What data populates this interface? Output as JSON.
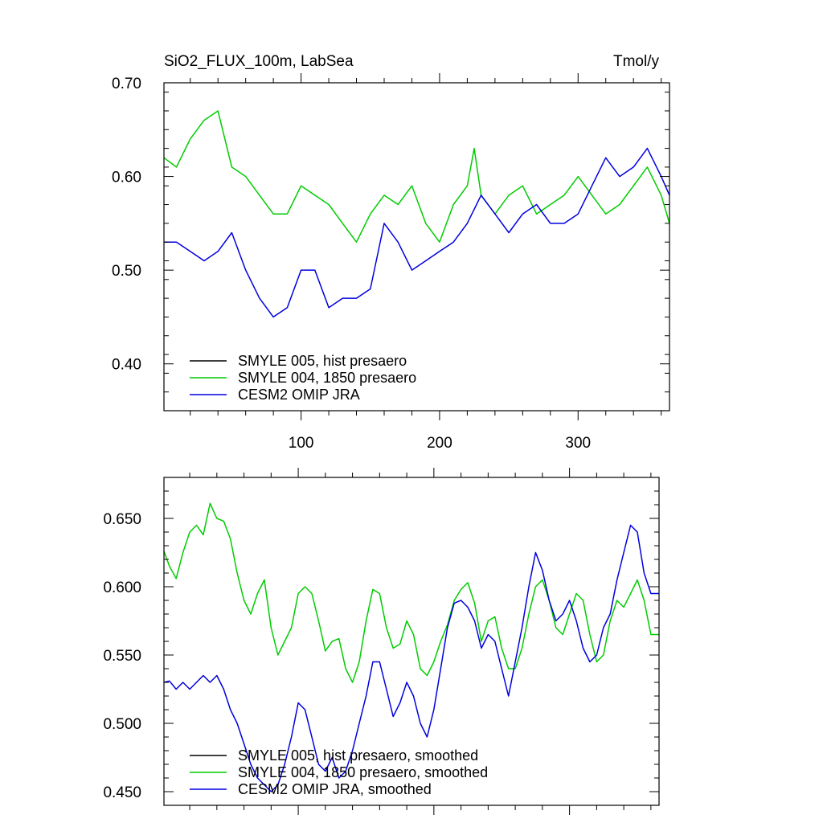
{
  "chart_data": [
    {
      "type": "line",
      "title": "SiO2_FLUX_100m, LabSea",
      "units": "Tmol/y",
      "xlim": [
        1,
        366
      ],
      "ylim": [
        0.35,
        0.7
      ],
      "xticks": [
        100,
        200,
        300
      ],
      "xtick_labels": [
        "100",
        "200",
        "300"
      ],
      "yticks": [
        0.4,
        0.5,
        0.6,
        0.7
      ],
      "ytick_labels": [
        "0.40",
        "0.50",
        "0.60",
        "0.70"
      ],
      "grid": false,
      "legend_position": "bottom-left",
      "series": [
        {
          "name": "SMYLE 005, hist presaero",
          "color": "#000000",
          "x": [],
          "values": []
        },
        {
          "name": "SMYLE 004, 1850 presaero",
          "color": "#00cc00",
          "x": [
            1,
            10,
            20,
            30,
            40,
            45,
            50,
            60,
            70,
            80,
            90,
            100,
            110,
            120,
            130,
            140,
            150,
            160,
            170,
            180,
            190,
            200,
            210,
            220,
            225,
            230,
            240,
            250,
            260,
            270,
            280,
            290,
            300,
            310,
            320,
            330,
            340,
            350,
            360,
            366
          ],
          "values": [
            0.62,
            0.61,
            0.64,
            0.66,
            0.67,
            0.64,
            0.61,
            0.6,
            0.58,
            0.56,
            0.56,
            0.59,
            0.58,
            0.57,
            0.55,
            0.53,
            0.56,
            0.58,
            0.57,
            0.59,
            0.55,
            0.53,
            0.57,
            0.59,
            0.63,
            0.58,
            0.56,
            0.58,
            0.59,
            0.56,
            0.57,
            0.58,
            0.6,
            0.58,
            0.56,
            0.57,
            0.59,
            0.61,
            0.58,
            0.55
          ]
        },
        {
          "name": "CESM2 OMIP JRA",
          "color": "#0000dd",
          "x": [
            1,
            10,
            20,
            30,
            40,
            50,
            60,
            70,
            80,
            90,
            100,
            110,
            120,
            130,
            140,
            150,
            160,
            170,
            180,
            190,
            200,
            210,
            220,
            230,
            240,
            250,
            260,
            270,
            280,
            290,
            300,
            310,
            320,
            330,
            340,
            350,
            360,
            366
          ],
          "values": [
            0.53,
            0.53,
            0.52,
            0.51,
            0.52,
            0.54,
            0.5,
            0.47,
            0.45,
            0.46,
            0.5,
            0.5,
            0.46,
            0.47,
            0.47,
            0.48,
            0.55,
            0.53,
            0.5,
            0.51,
            0.52,
            0.53,
            0.55,
            0.58,
            0.56,
            0.54,
            0.56,
            0.57,
            0.55,
            0.55,
            0.56,
            0.59,
            0.62,
            0.6,
            0.61,
            0.63,
            0.6,
            0.58
          ]
        }
      ],
      "legend": [
        {
          "label": "SMYLE 005, hist presaero",
          "color": "#000000"
        },
        {
          "label": "SMYLE 004, 1850 presaero",
          "color": "#00cc00"
        },
        {
          "label": "CESM2 OMIP JRA",
          "color": "#0000dd"
        }
      ]
    },
    {
      "type": "line",
      "title": "",
      "xlim": [
        1,
        366
      ],
      "ylim": [
        0.44,
        0.68
      ],
      "xticks": [
        100,
        200,
        300
      ],
      "xtick_labels": [],
      "yticks": [
        0.45,
        0.5,
        0.55,
        0.6,
        0.65
      ],
      "ytick_labels": [
        "0.450",
        "0.500",
        "0.550",
        "0.600",
        "0.650"
      ],
      "grid": false,
      "legend_position": "bottom-left",
      "series": [
        {
          "name": "SMYLE 005, hist presaero, smoothed",
          "color": "#000000",
          "x": [],
          "values": []
        },
        {
          "name": "SMYLE 004, 1850 presaero, smoothed",
          "color": "#00cc00",
          "x": [
            1,
            5,
            10,
            15,
            20,
            25,
            30,
            35,
            40,
            45,
            50,
            55,
            60,
            65,
            70,
            75,
            80,
            85,
            90,
            95,
            100,
            105,
            110,
            115,
            120,
            125,
            130,
            135,
            140,
            145,
            150,
            155,
            160,
            165,
            170,
            175,
            180,
            185,
            190,
            195,
            200,
            205,
            210,
            215,
            220,
            225,
            230,
            235,
            240,
            245,
            250,
            255,
            260,
            265,
            270,
            275,
            280,
            285,
            290,
            295,
            300,
            305,
            310,
            315,
            320,
            325,
            330,
            335,
            340,
            345,
            350,
            355,
            360,
            366
          ],
          "values": [
            0.626,
            0.615,
            0.606,
            0.625,
            0.64,
            0.645,
            0.638,
            0.661,
            0.65,
            0.648,
            0.635,
            0.61,
            0.59,
            0.58,
            0.595,
            0.605,
            0.57,
            0.55,
            0.56,
            0.57,
            0.595,
            0.6,
            0.595,
            0.575,
            0.553,
            0.56,
            0.562,
            0.54,
            0.53,
            0.545,
            0.575,
            0.598,
            0.595,
            0.57,
            0.555,
            0.558,
            0.575,
            0.565,
            0.54,
            0.535,
            0.545,
            0.56,
            0.572,
            0.59,
            0.598,
            0.603,
            0.588,
            0.56,
            0.575,
            0.578,
            0.555,
            0.54,
            0.54,
            0.555,
            0.58,
            0.6,
            0.605,
            0.59,
            0.57,
            0.565,
            0.58,
            0.595,
            0.59,
            0.565,
            0.545,
            0.55,
            0.575,
            0.59,
            0.585,
            0.595,
            0.605,
            0.59,
            0.565,
            0.565
          ]
        },
        {
          "name": "CESM2 OMIP JRA, smoothed",
          "color": "#0000dd",
          "x": [
            1,
            5,
            10,
            15,
            20,
            25,
            30,
            35,
            40,
            45,
            50,
            55,
            60,
            65,
            70,
            75,
            80,
            85,
            90,
            95,
            100,
            105,
            110,
            115,
            120,
            125,
            130,
            135,
            140,
            145,
            150,
            155,
            160,
            165,
            170,
            175,
            180,
            185,
            190,
            195,
            200,
            205,
            210,
            215,
            220,
            225,
            230,
            235,
            240,
            245,
            250,
            255,
            260,
            265,
            270,
            275,
            280,
            285,
            290,
            295,
            300,
            305,
            310,
            315,
            320,
            325,
            330,
            335,
            340,
            345,
            350,
            355,
            360,
            366
          ],
          "values": [
            0.53,
            0.531,
            0.525,
            0.53,
            0.525,
            0.53,
            0.535,
            0.53,
            0.535,
            0.525,
            0.51,
            0.5,
            0.485,
            0.47,
            0.46,
            0.455,
            0.45,
            0.455,
            0.47,
            0.49,
            0.515,
            0.51,
            0.49,
            0.47,
            0.465,
            0.475,
            0.46,
            0.465,
            0.48,
            0.5,
            0.52,
            0.545,
            0.545,
            0.525,
            0.505,
            0.515,
            0.53,
            0.52,
            0.5,
            0.49,
            0.51,
            0.54,
            0.57,
            0.588,
            0.59,
            0.585,
            0.575,
            0.555,
            0.565,
            0.56,
            0.54,
            0.52,
            0.545,
            0.57,
            0.6,
            0.625,
            0.612,
            0.59,
            0.575,
            0.58,
            0.59,
            0.575,
            0.555,
            0.545,
            0.55,
            0.57,
            0.58,
            0.605,
            0.625,
            0.645,
            0.64,
            0.61,
            0.595,
            0.595
          ]
        }
      ],
      "legend": [
        {
          "label": "SMYLE 005, hist presaero, smoothed",
          "color": "#000000"
        },
        {
          "label": "SMYLE 004, 1850 presaero, smoothed",
          "color": "#00cc00"
        },
        {
          "label": "CESM2 OMIP JRA, smoothed",
          "color": "#0000dd"
        }
      ]
    }
  ]
}
